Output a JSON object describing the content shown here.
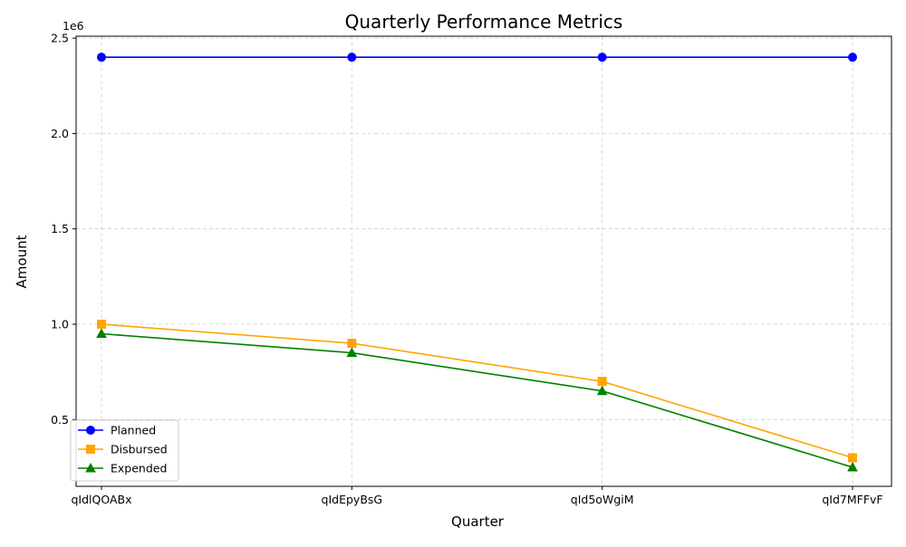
{
  "chart_data": {
    "type": "line",
    "title": "Quarterly Performance Metrics",
    "xlabel": "Quarter",
    "ylabel": "Amount",
    "y_offset_label": "1e6",
    "categories": [
      "qIdlQOABx",
      "qIdEpyBsG",
      "qId5oWgiM",
      "qId7MFFvF"
    ],
    "y_ticks": [
      0.5,
      1.0,
      1.5,
      2.0,
      2.5
    ],
    "y_tick_labels": [
      "0.5",
      "1.0",
      "1.5",
      "2.0",
      "2.5"
    ],
    "ylim": [
      150000,
      2510000
    ],
    "grid": true,
    "legend_position": "lower-left",
    "series": [
      {
        "name": "Planned",
        "values": [
          2400000,
          2400000,
          2400000,
          2400000
        ],
        "color": "#0000ff",
        "marker": "circle"
      },
      {
        "name": "Disbursed",
        "values": [
          1000000,
          900000,
          700000,
          300000
        ],
        "color": "#ffa500",
        "marker": "square"
      },
      {
        "name": "Expended",
        "values": [
          950000,
          850000,
          650000,
          250000
        ],
        "color": "#008000",
        "marker": "triangle"
      }
    ]
  }
}
